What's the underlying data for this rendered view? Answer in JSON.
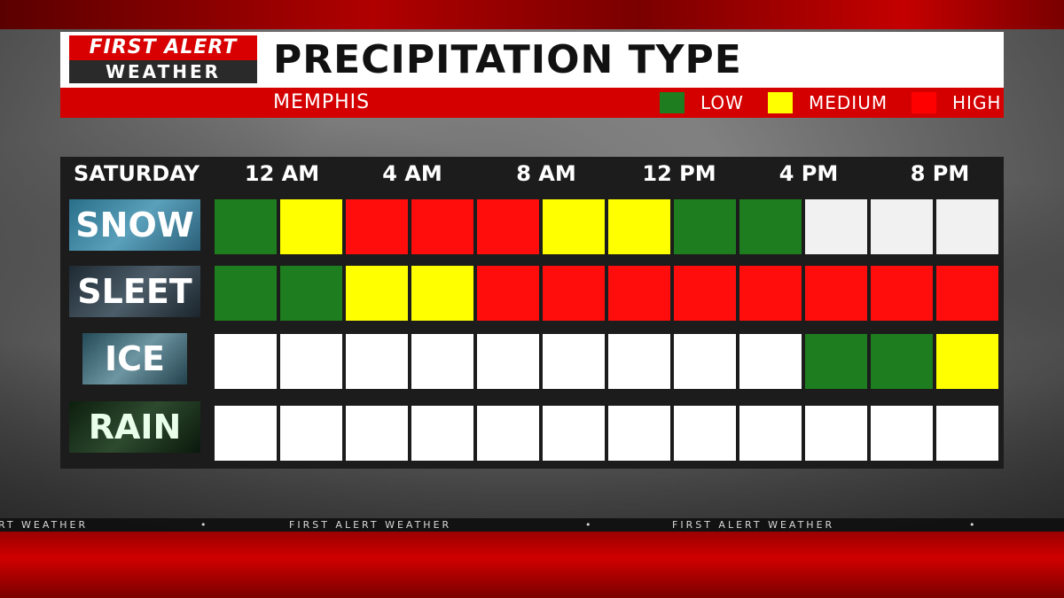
{
  "logo": {
    "line1": "FIRST ALERT",
    "line2": "WEATHER"
  },
  "title": "PRECIPITATION TYPE",
  "location": "MEMPHIS",
  "legend": [
    {
      "label": "LOW",
      "color": "#1e7d1e"
    },
    {
      "label": "MEDIUM",
      "color": "#ffff00"
    },
    {
      "label": "HIGH",
      "color": "#ff0000"
    }
  ],
  "day_label": "SATURDAY",
  "time_labels": [
    "12 AM",
    "4 AM",
    "8 AM",
    "12 PM",
    "4 PM",
    "8 PM"
  ],
  "level_colors": {
    "low": "#1e7d1e",
    "medium": "#ffff00",
    "high": "#ff0c0c",
    "none": "#ffffff",
    "none_snow": "#f1f1f1"
  },
  "rows": [
    {
      "label": "SNOW",
      "levels": [
        "low",
        "medium",
        "high",
        "high",
        "high",
        "medium",
        "medium",
        "low",
        "low",
        "none_snow",
        "none_snow",
        "none_snow"
      ]
    },
    {
      "label": "SLEET",
      "levels": [
        "low",
        "low",
        "medium",
        "medium",
        "high",
        "high",
        "high",
        "high",
        "high",
        "high",
        "high",
        "high"
      ]
    },
    {
      "label": "ICE",
      "levels": [
        "none",
        "none",
        "none",
        "none",
        "none",
        "none",
        "none",
        "none",
        "none",
        "low",
        "low",
        "medium"
      ]
    },
    {
      "label": "RAIN",
      "levels": [
        "none",
        "none",
        "none",
        "none",
        "none",
        "none",
        "none",
        "none",
        "none",
        "none",
        "none",
        "none"
      ]
    }
  ],
  "ticker": {
    "text": "FIRST ALERT WEATHER",
    "partial": "RT WEATHER",
    "separator": "•"
  }
}
